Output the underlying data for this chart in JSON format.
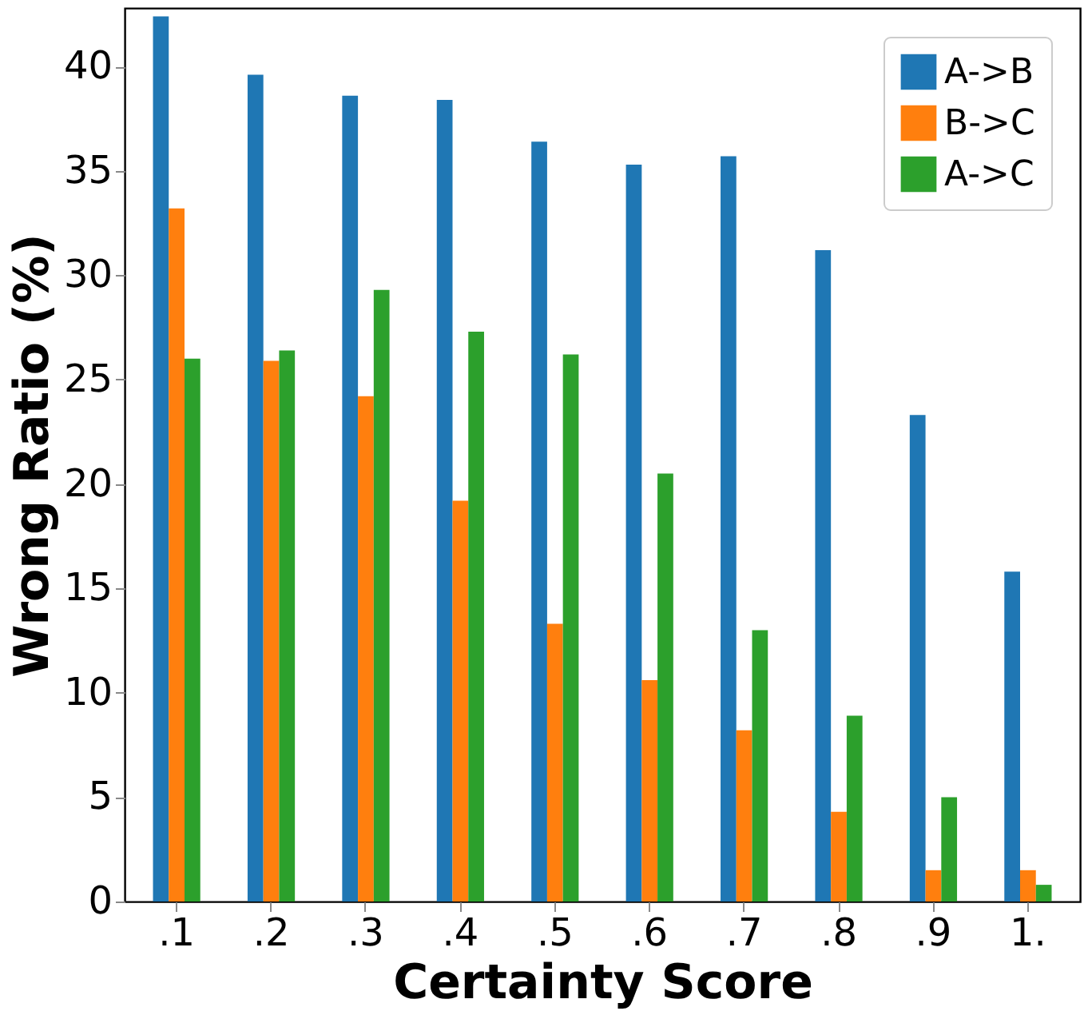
{
  "chart_data": {
    "type": "bar",
    "xlabel": "Certainty Score",
    "ylabel": "Wrong Ratio (%)",
    "categories": [
      ".1",
      ".2",
      ".3",
      ".4",
      ".5",
      ".6",
      ".7",
      ".8",
      ".9",
      "1."
    ],
    "series": [
      {
        "name": "A->B",
        "color": "#1f77b4",
        "values": [
          42.4,
          39.6,
          38.6,
          38.4,
          36.4,
          35.3,
          35.7,
          31.2,
          23.3,
          15.8
        ]
      },
      {
        "name": "B->C",
        "color": "#ff7f0e",
        "values": [
          33.2,
          25.9,
          24.2,
          19.2,
          13.3,
          10.6,
          8.2,
          4.3,
          1.5,
          1.5
        ]
      },
      {
        "name": "A->C",
        "color": "#2ca02c",
        "values": [
          26.0,
          26.4,
          29.3,
          27.3,
          26.2,
          20.5,
          13.0,
          8.9,
          5.0,
          0.8
        ]
      }
    ],
    "ylim": [
      0,
      42.8
    ],
    "yticks": [
      0,
      5,
      10,
      15,
      20,
      25,
      30,
      35,
      40
    ],
    "grid": false,
    "legend": "top right"
  }
}
